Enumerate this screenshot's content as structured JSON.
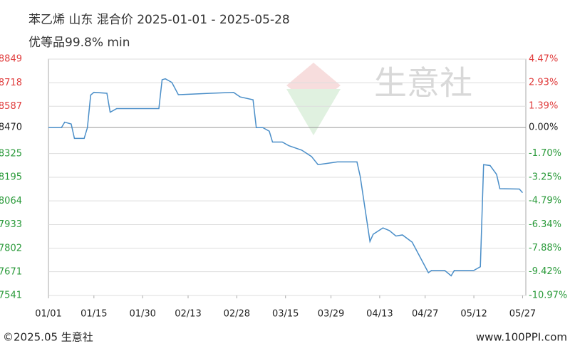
{
  "chart_data": {
    "type": "line",
    "title": "苯乙烯 山东 混合价 2025-01-01 - 2025-05-28",
    "subtitle": "优等品99.8% min",
    "watermark": "生意社",
    "footer_left": "©2025.05 生意社",
    "footer_right": "www.100PPI.com",
    "x": [
      "01/01",
      "01/05",
      "01/06",
      "01/08",
      "01/09",
      "01/12",
      "01/13",
      "01/14",
      "01/15",
      "01/19",
      "01/20",
      "01/22",
      "02/04",
      "02/05",
      "02/06",
      "02/08",
      "02/10",
      "02/20",
      "02/27",
      "03/01",
      "03/05",
      "03/06",
      "03/08",
      "03/10",
      "03/11",
      "03/14",
      "03/16",
      "03/20",
      "03/23",
      "03/25",
      "03/27",
      "03/31",
      "04/06",
      "04/07",
      "04/10",
      "04/11",
      "04/14",
      "04/16",
      "04/18",
      "04/20",
      "04/23",
      "04/28",
      "04/29",
      "05/03",
      "05/05",
      "05/06",
      "05/12",
      "05/14",
      "05/15",
      "05/17",
      "05/19",
      "05/20",
      "05/26",
      "05/27"
    ],
    "series": [
      {
        "name": "苯乙烯",
        "color": "#4a8ec8",
        "values": [
          8470,
          8470,
          8500,
          8490,
          8410,
          8410,
          8470,
          8650,
          8665,
          8660,
          8555,
          8575,
          8575,
          8735,
          8740,
          8720,
          8652,
          8660,
          8665,
          8640,
          8624,
          8470,
          8470,
          8450,
          8390,
          8390,
          8370,
          8345,
          8310,
          8265,
          8270,
          8280,
          8280,
          8200,
          7840,
          7880,
          7915,
          7900,
          7870,
          7876,
          7836,
          7667,
          7680,
          7680,
          7650,
          7680,
          7680,
          7700,
          8265,
          8260,
          8211,
          8132,
          8130,
          8110
        ]
      }
    ],
    "xlim": [
      "01/01",
      "05/28"
    ],
    "xticks": [
      "01/01",
      "01/15",
      "01/30",
      "02/13",
      "02/28",
      "03/15",
      "03/29",
      "04/13",
      "04/27",
      "05/12",
      "05/27"
    ],
    "ylim": [
      7541,
      8849
    ],
    "yticks": [
      8849,
      8718,
      8587,
      8470,
      8325,
      8195,
      8064,
      7933,
      7802,
      7671,
      7541
    ],
    "y2lim": [
      -10.97,
      4.47
    ],
    "y2ticks": [
      {
        "value": 4.47,
        "label": "4.47%"
      },
      {
        "value": 2.93,
        "label": "2.93%"
      },
      {
        "value": 1.39,
        "label": "1.39%"
      },
      {
        "value": 0,
        "label": "0.00%"
      },
      {
        "value": -1.7,
        "label": "-1.70%"
      },
      {
        "value": -3.25,
        "label": "-3.25%"
      },
      {
        "value": -4.79,
        "label": "-4.79%"
      },
      {
        "value": -6.34,
        "label": "-6.34%"
      },
      {
        "value": -7.88,
        "label": "-7.88%"
      },
      {
        "value": -9.42,
        "label": "-9.42%"
      },
      {
        "value": -10.97,
        "label": "-10.97%"
      }
    ],
    "grid": true
  }
}
